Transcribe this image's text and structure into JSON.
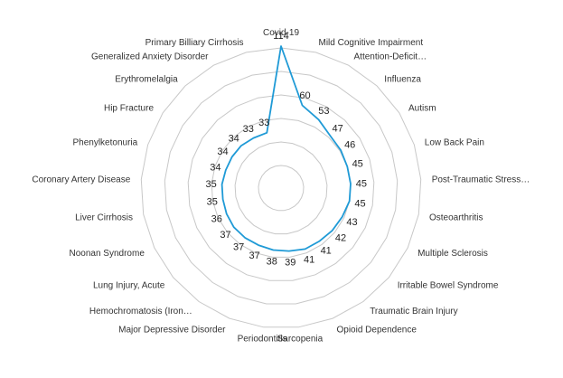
{
  "chart_data": {
    "type": "radar",
    "categories": [
      "Covid-19",
      "Mild Cognitive Impairment",
      "Attention-Deficit…",
      "Influenza",
      "Autism",
      "Low Back Pain",
      "Post-Traumatic Stress…",
      "Osteoarthritis",
      "Multiple Sclerosis",
      "Irritable Bowel Syndrome",
      "Traumatic Brain Injury",
      "Opioid Dependence",
      "Sarcopenia",
      "Periodontitis",
      "Major Depressive Disorder",
      "Hemochromatosis (Iron…",
      "Lung Injury, Acute",
      "Noonan Syndrome",
      "Liver Cirrhosis",
      "Coronary Artery Disease",
      "Phenylketonuria",
      "Hip Fracture",
      "Erythromelalgia",
      "Generalized Anxiety Disorder",
      "Primary Billiary Cirrhosis"
    ],
    "values": [
      114,
      60,
      53,
      47,
      46,
      45,
      45,
      45,
      43,
      42,
      41,
      41,
      39,
      38,
      37,
      37,
      37,
      36,
      35,
      35,
      34,
      34,
      34,
      33,
      33
    ],
    "series_color": "#1f9ad6",
    "grid_color": "#c8c8c8",
    "grid": true,
    "rings": 5
  }
}
